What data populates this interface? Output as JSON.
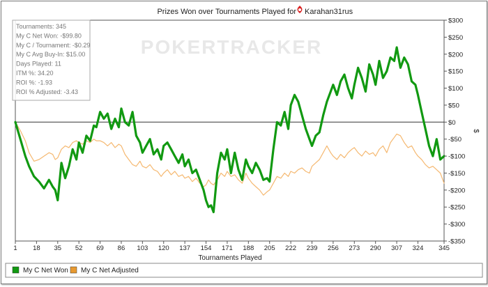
{
  "chart_data": {
    "type": "line",
    "title": "Prizes Won over Tournaments Played for",
    "player": "Karahan31rus",
    "watermark": "POKERTRACKER",
    "xlabel": "Tournaments Played",
    "ylabel": "$",
    "xlim": [
      1,
      345
    ],
    "ylim": [
      -350,
      300
    ],
    "x_ticks": [
      1,
      18,
      35,
      52,
      69,
      86,
      103,
      120,
      137,
      154,
      171,
      188,
      205,
      222,
      239,
      256,
      273,
      290,
      307,
      324,
      345
    ],
    "x_tick_labels": [
      "1",
      "18",
      "35",
      "52",
      "69",
      "86",
      "103",
      "120",
      "137",
      "154",
      "171",
      "188",
      "205",
      "222",
      "239",
      "256",
      "273",
      "290",
      "307",
      "324",
      "345"
    ],
    "y_ticks": [
      300,
      250,
      200,
      150,
      100,
      50,
      0,
      -50,
      -100,
      -150,
      -200,
      -250,
      -300,
      -350
    ],
    "y_tick_labels": [
      "$300",
      "$250",
      "$200",
      "$150",
      "$100",
      "$50",
      "$0",
      "-$50",
      "-$100",
      "-$150",
      "-$200",
      "-$250",
      "-$300",
      "-$350"
    ],
    "legend_position": "bottom-left",
    "series": [
      {
        "name": "My C Net Won",
        "color": "#119911",
        "x": [
          1,
          5,
          9,
          12,
          16,
          20,
          24,
          28,
          31,
          33,
          35,
          38,
          41,
          44,
          47,
          50,
          52,
          55,
          58,
          61,
          64,
          66,
          69,
          72,
          75,
          78,
          81,
          84,
          86,
          89,
          92,
          95,
          98,
          101,
          103,
          106,
          109,
          112,
          115,
          118,
          120,
          123,
          126,
          129,
          132,
          135,
          137,
          140,
          143,
          146,
          149,
          152,
          154,
          156,
          158,
          160,
          163,
          166,
          169,
          171,
          174,
          177,
          180,
          183,
          186,
          188,
          191,
          194,
          197,
          200,
          203,
          205,
          208,
          211,
          214,
          217,
          220,
          222,
          225,
          228,
          231,
          234,
          237,
          239,
          242,
          245,
          248,
          251,
          254,
          256,
          259,
          262,
          265,
          268,
          271,
          273,
          276,
          279,
          282,
          285,
          288,
          290,
          293,
          296,
          299,
          302,
          305,
          307,
          310,
          313,
          316,
          319,
          322,
          324,
          327,
          330,
          333,
          336,
          339,
          342,
          345
        ],
        "values": [
          0,
          -50,
          -100,
          -130,
          -160,
          -175,
          -195,
          -170,
          -190,
          -200,
          -230,
          -120,
          -165,
          -130,
          -80,
          -110,
          -60,
          -90,
          -40,
          -55,
          -10,
          -15,
          30,
          10,
          25,
          -20,
          10,
          -15,
          40,
          0,
          -10,
          30,
          -40,
          -60,
          -90,
          -70,
          -50,
          -95,
          -80,
          -110,
          -70,
          -60,
          -80,
          -100,
          -120,
          -95,
          -130,
          -110,
          -150,
          -140,
          -170,
          -200,
          -230,
          -250,
          -245,
          -265,
          -150,
          -90,
          -110,
          -80,
          -150,
          -90,
          -140,
          -170,
          -110,
          -130,
          -150,
          -120,
          -140,
          -170,
          -165,
          -175,
          -80,
          0,
          -10,
          30,
          -20,
          50,
          80,
          60,
          20,
          -20,
          -50,
          -70,
          -40,
          -30,
          20,
          60,
          90,
          110,
          80,
          120,
          140,
          100,
          70,
          110,
          160,
          130,
          90,
          170,
          140,
          110,
          180,
          130,
          150,
          190,
          180,
          220,
          160,
          190,
          170,
          120,
          110,
          80,
          30,
          -20,
          -70,
          -100,
          -50,
          -110,
          -100
        ]
      },
      {
        "name": "My C Net Adjusted",
        "color": "#f5b870",
        "x": [
          1,
          5,
          9,
          12,
          16,
          20,
          24,
          28,
          31,
          33,
          35,
          38,
          41,
          44,
          47,
          50,
          52,
          55,
          58,
          61,
          64,
          66,
          69,
          72,
          75,
          78,
          81,
          84,
          86,
          89,
          92,
          95,
          98,
          101,
          103,
          106,
          109,
          112,
          115,
          118,
          120,
          123,
          126,
          129,
          132,
          135,
          137,
          140,
          143,
          146,
          149,
          152,
          154,
          156,
          158,
          160,
          163,
          166,
          169,
          171,
          174,
          177,
          180,
          183,
          186,
          188,
          191,
          194,
          197,
          200,
          203,
          205,
          208,
          211,
          214,
          217,
          220,
          222,
          225,
          228,
          231,
          234,
          237,
          239,
          242,
          245,
          248,
          251,
          254,
          256,
          259,
          262,
          265,
          268,
          271,
          273,
          276,
          279,
          282,
          285,
          288,
          290,
          293,
          296,
          299,
          302,
          305,
          307,
          310,
          313,
          316,
          319,
          322,
          324,
          327,
          330,
          333,
          336,
          339,
          342,
          345
        ],
        "values": [
          0,
          -25,
          -55,
          -90,
          -115,
          -110,
          -100,
          -90,
          -95,
          -110,
          -105,
          -80,
          -70,
          -75,
          -60,
          -55,
          -60,
          -65,
          -55,
          -60,
          -50,
          -55,
          -55,
          -60,
          -70,
          -60,
          -75,
          -65,
          -70,
          -95,
          -110,
          -125,
          -130,
          -115,
          -130,
          -135,
          -125,
          -140,
          -145,
          -160,
          -150,
          -140,
          -155,
          -145,
          -160,
          -155,
          -165,
          -160,
          -175,
          -165,
          -180,
          -190,
          -185,
          -170,
          -180,
          -185,
          -170,
          -150,
          -160,
          -145,
          -160,
          -155,
          -170,
          -180,
          -150,
          -165,
          -180,
          -190,
          -200,
          -215,
          -205,
          -200,
          -180,
          -160,
          -165,
          -150,
          -160,
          -145,
          -150,
          -140,
          -135,
          -145,
          -150,
          -130,
          -120,
          -110,
          -90,
          -70,
          -90,
          -100,
          -110,
          -95,
          -105,
          -90,
          -80,
          -75,
          -90,
          -100,
          -85,
          -95,
          -90,
          -100,
          -80,
          -70,
          -90,
          -60,
          -45,
          -35,
          -40,
          -60,
          -75,
          -70,
          -90,
          -100,
          -110,
          -125,
          -135,
          -130,
          -140,
          -150,
          -180
        ]
      }
    ]
  },
  "stats": [
    {
      "label": "Tournaments",
      "value": "345"
    },
    {
      "label": "My C Net Won",
      "value": "-$99.80"
    },
    {
      "label": "My C / Tournament",
      "value": "-$0.29"
    },
    {
      "label": "My C Avg Buy-In",
      "value": "$15.00"
    },
    {
      "label": "Days Played",
      "value": "11"
    },
    {
      "label": "ITM %",
      "value": "34.20"
    },
    {
      "label": "ROI %",
      "value": "-1.93"
    },
    {
      "label": "ROI % Adjusted",
      "value": "-3.43"
    }
  ]
}
